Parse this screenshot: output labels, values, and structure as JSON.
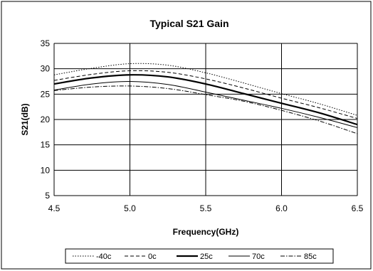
{
  "chart_data": {
    "type": "line",
    "title": "Typical S21 Gain",
    "xlabel": "Frequency(GHz)",
    "ylabel": "S21(dB)",
    "xlim": [
      4.5,
      6.5
    ],
    "ylim": [
      5,
      35
    ],
    "x_ticks": [
      "4.5",
      "5.0",
      "5.5",
      "6.0",
      "6.5"
    ],
    "y_ticks": [
      "5",
      "10",
      "15",
      "20",
      "25",
      "30",
      "35"
    ],
    "grid": true,
    "legend_position": "bottom",
    "x": [
      4.5,
      4.75,
      5.0,
      5.25,
      5.5,
      5.75,
      6.0,
      6.25,
      6.5
    ],
    "series": [
      {
        "name": "-40c",
        "style": "dotted",
        "values": [
          28.8,
          30.1,
          31.0,
          30.7,
          29.2,
          27.2,
          25.1,
          23.1,
          20.8
        ]
      },
      {
        "name": "0c",
        "style": "dashed",
        "values": [
          27.7,
          28.9,
          29.6,
          29.3,
          28.0,
          26.2,
          24.2,
          22.3,
          20.2
        ]
      },
      {
        "name": "25c",
        "style": "solid-thick",
        "values": [
          27.0,
          28.2,
          28.8,
          28.4,
          27.0,
          25.1,
          23.2,
          21.3,
          19.0
        ]
      },
      {
        "name": "70c",
        "style": "solid",
        "values": [
          25.8,
          27.0,
          27.5,
          26.9,
          25.4,
          23.8,
          22.2,
          20.4,
          18.4
        ]
      },
      {
        "name": "85c",
        "style": "dash-dot",
        "values": [
          25.7,
          26.4,
          26.6,
          26.1,
          24.9,
          23.6,
          21.8,
          19.7,
          17.2
        ]
      }
    ]
  }
}
